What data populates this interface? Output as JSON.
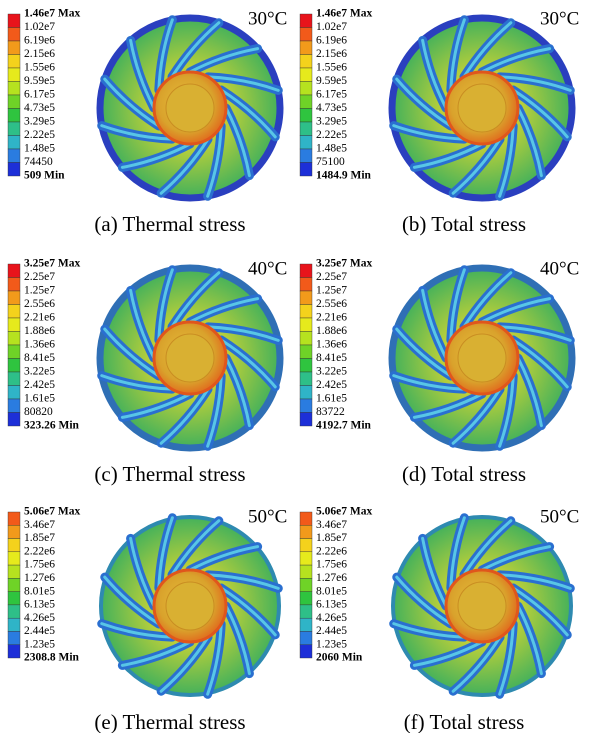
{
  "panels": [
    {
      "temperature": "30°C",
      "caption": "(a) Thermal stress",
      "legend": [
        "1.46e7 Max",
        "1.02e7",
        "6.19e6",
        "2.15e6",
        "1.55e6",
        "9.59e5",
        "6.17e5",
        "4.73e5",
        "3.29e5",
        "2.22e5",
        "1.48e5",
        "74450",
        "509 Min"
      ]
    },
    {
      "temperature": "30°C",
      "caption": "(b) Total stress",
      "legend": [
        "1.46e7 Max",
        "1.02e7",
        "6.19e6",
        "2.15e6",
        "1.55e6",
        "9.59e5",
        "6.17e5",
        "4.73e5",
        "3.29e5",
        "2.22e5",
        "1.48e5",
        "75100",
        "1484.9 Min"
      ]
    },
    {
      "temperature": "40°C",
      "caption": "(c) Thermal stress",
      "legend": [
        "3.25e7 Max",
        "2.25e7",
        "1.25e7",
        "2.55e6",
        "2.21e6",
        "1.88e6",
        "1.36e6",
        "8.41e5",
        "3.22e5",
        "2.42e5",
        "1.61e5",
        "80820",
        "323.26 Min"
      ]
    },
    {
      "temperature": "40°C",
      "caption": "(d) Total stress",
      "legend": [
        "3.25e7 Max",
        "2.25e7",
        "1.25e7",
        "2.55e6",
        "2.21e6",
        "1.88e6",
        "1.36e6",
        "8.41e5",
        "3.22e5",
        "2.42e5",
        "1.61e5",
        "83722",
        "4192.7 Min"
      ]
    },
    {
      "temperature": "50°C",
      "caption": "(e) Thermal stress",
      "legend": [
        "5.06e7 Max",
        "3.46e7",
        "1.85e7",
        "2.22e6",
        "1.75e6",
        "1.27e6",
        "8.01e5",
        "6.13e5",
        "4.26e5",
        "2.44e5",
        "1.23e5",
        "2308.8 Min"
      ]
    },
    {
      "temperature": "50°C",
      "caption": "(f) Total stress",
      "legend": [
        "5.06e7 Max",
        "3.46e7",
        "1.85e7",
        "2.22e6",
        "1.75e6",
        "1.27e6",
        "8.01e5",
        "6.13e5",
        "4.26e5",
        "2.44e5",
        "1.23e5",
        "2060 Min"
      ]
    }
  ]
}
